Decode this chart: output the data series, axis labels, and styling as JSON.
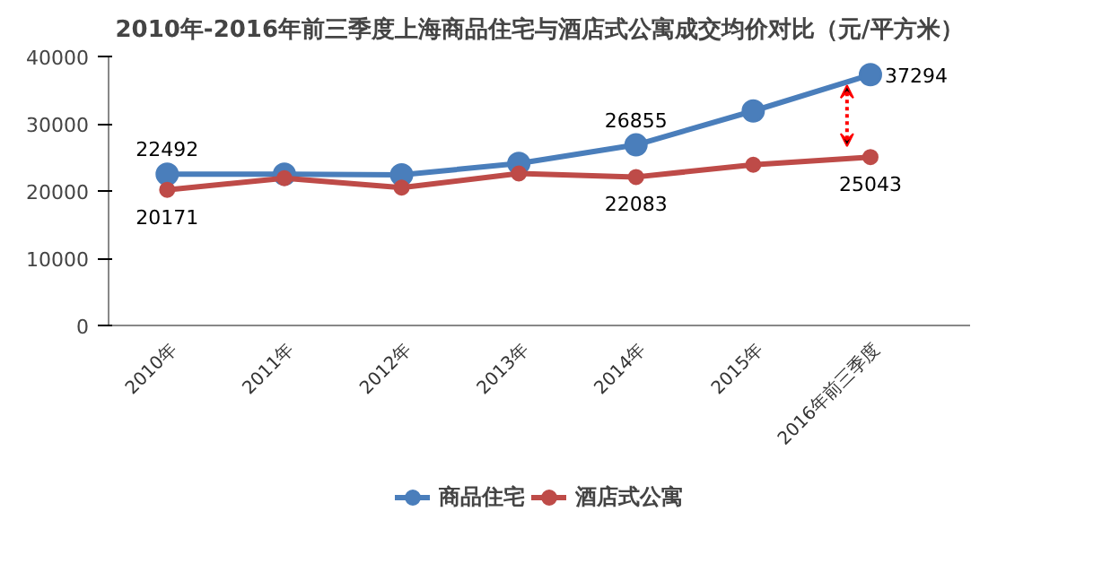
{
  "chart_data": {
    "type": "line",
    "title": "2010年-2016年前三季度上海商品住宅与酒店式公寓成交均价对比（元/平方米）",
    "categories": [
      "2010年",
      "2011年",
      "2012年",
      "2013年",
      "2014年",
      "2015年",
      "2016年前三季度"
    ],
    "series": [
      {
        "name": "商品住宅",
        "color": "#4a7ebb",
        "values": [
          22492,
          22500,
          22400,
          24100,
          26855,
          31900,
          37294
        ],
        "value_labels": [
          "22492",
          null,
          null,
          null,
          "26855",
          null,
          "37294"
        ]
      },
      {
        "name": "酒店式公寓",
        "color": "#be4b48",
        "values": [
          20171,
          21900,
          20500,
          22600,
          22083,
          23900,
          25043
        ],
        "value_labels": [
          "20171",
          null,
          null,
          null,
          "22083",
          null,
          "25043"
        ]
      }
    ],
    "ylim": [
      0,
      40000
    ],
    "yticks": [
      0,
      10000,
      20000,
      30000,
      40000
    ],
    "grid": false,
    "legend": "bottom",
    "marker": "circle",
    "line_style": "solid"
  }
}
